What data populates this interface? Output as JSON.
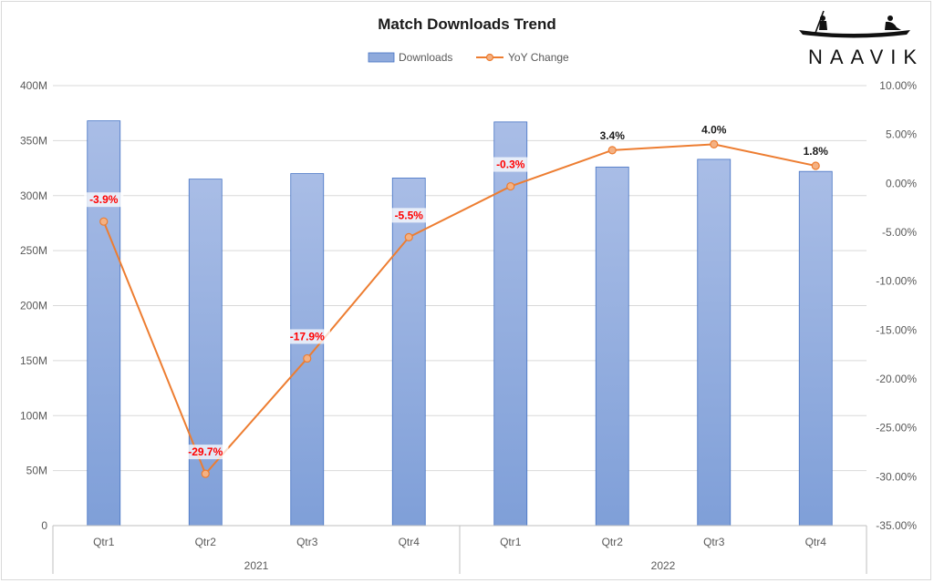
{
  "chart_data": {
    "type": "bar",
    "title": "Match Downloads Trend",
    "categories": [
      "Qtr1",
      "Qtr2",
      "Qtr3",
      "Qtr4",
      "Qtr1",
      "Qtr2",
      "Qtr3",
      "Qtr4"
    ],
    "groups": [
      {
        "label": "2021",
        "span": 4
      },
      {
        "label": "2022",
        "span": 4
      }
    ],
    "series": [
      {
        "name": "Downloads",
        "type": "bar",
        "axis": "left",
        "color": "#8faadc",
        "values": [
          368,
          315,
          320,
          316,
          367,
          326,
          333,
          322
        ]
      },
      {
        "name": "YoY Change",
        "type": "line",
        "axis": "right",
        "color": "#ed7d31",
        "values": [
          -3.9,
          -29.7,
          -17.9,
          -5.5,
          -0.3,
          3.4,
          4.0,
          1.8
        ],
        "labels": [
          "-3.9%",
          "-29.7%",
          "-17.9%",
          "-5.5%",
          "-0.3%",
          "3.4%",
          "4.0%",
          "1.8%"
        ]
      }
    ],
    "y_left": {
      "ylim": [
        0,
        400
      ],
      "ticks": [
        0,
        50,
        100,
        150,
        200,
        250,
        300,
        350,
        400
      ],
      "tick_labels": [
        "0",
        "50M",
        "100M",
        "150M",
        "200M",
        "250M",
        "300M",
        "350M",
        "400M"
      ]
    },
    "y_right": {
      "ylim": [
        -35,
        10
      ],
      "ticks": [
        -35,
        -30,
        -25,
        -20,
        -15,
        -10,
        -5,
        0,
        5,
        10
      ],
      "tick_labels": [
        "-35.00%",
        "-30.00%",
        "-25.00%",
        "-20.00%",
        "-15.00%",
        "-10.00%",
        "-5.00%",
        "0.00%",
        "5.00%",
        "10.00%"
      ]
    },
    "legend_position": "top",
    "grid": true
  },
  "brand": {
    "name": "NAAVIK",
    "logo_icon": "boat-rowers-icon"
  }
}
